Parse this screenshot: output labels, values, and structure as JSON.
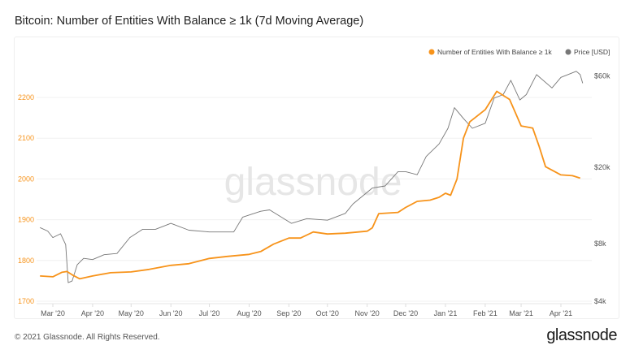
{
  "title": "Bitcoin: Number of Entities With Balance ≥ 1k (7d Moving Average)",
  "footer": {
    "copyright": "© 2021 Glassnode. All Rights Reserved.",
    "brand": "glassnode"
  },
  "watermark": "glassnode",
  "chart_data": {
    "type": "line",
    "title": "Bitcoin: Number of Entities With Balance ≥ 1k (7d Moving Average)",
    "legend_placement": "top-right",
    "grid": true,
    "x_ticks": [
      "Mar '20",
      "Apr '20",
      "May '20",
      "Jun '20",
      "Jul '20",
      "Aug '20",
      "Sep '20",
      "Oct '20",
      "Nov '20",
      "Dec '20",
      "Jan '21",
      "Feb '21",
      "Mar '21",
      "Apr '21"
    ],
    "x_tick_dates": [
      "2020-03-01",
      "2020-04-01",
      "2020-05-01",
      "2020-06-01",
      "2020-07-01",
      "2020-08-01",
      "2020-09-01",
      "2020-10-01",
      "2020-11-01",
      "2020-12-01",
      "2021-01-01",
      "2021-02-01",
      "2021-03-01",
      "2021-04-01"
    ],
    "y_left": {
      "ticks": [
        1700,
        1800,
        1900,
        2000,
        2100,
        2200
      ],
      "range": [
        1700,
        2250
      ],
      "color": "#f7931a"
    },
    "y_right": {
      "ticks": [
        "$4k",
        "$8k",
        "$20k",
        "$60k"
      ],
      "tick_values": [
        4000,
        8000,
        20000,
        60000
      ],
      "scale": "log",
      "range": [
        4000,
        70000
      ],
      "color": "#555555"
    },
    "series": [
      {
        "name": "Number of Entities With Balance ≥ 1k",
        "color": "#f7931a",
        "axis": "left",
        "x": [
          "2020-02-20",
          "2020-03-01",
          "2020-03-08",
          "2020-03-12",
          "2020-03-16",
          "2020-03-22",
          "2020-04-01",
          "2020-04-15",
          "2020-05-01",
          "2020-05-15",
          "2020-06-01",
          "2020-06-15",
          "2020-07-01",
          "2020-07-15",
          "2020-08-01",
          "2020-08-10",
          "2020-08-20",
          "2020-09-01",
          "2020-09-10",
          "2020-09-20",
          "2020-10-01",
          "2020-10-15",
          "2020-11-01",
          "2020-11-05",
          "2020-11-10",
          "2020-11-25",
          "2020-12-01",
          "2020-12-10",
          "2020-12-20",
          "2020-12-27",
          "2021-01-01",
          "2021-01-05",
          "2021-01-10",
          "2021-01-15",
          "2021-01-20",
          "2021-02-01",
          "2021-02-10",
          "2021-02-15",
          "2021-02-20",
          "2021-03-01",
          "2021-03-10",
          "2021-03-15",
          "2021-03-20",
          "2021-04-01",
          "2021-04-10",
          "2021-04-16"
        ],
        "values": [
          1762,
          1760,
          1771,
          1773,
          1765,
          1755,
          1762,
          1770,
          1772,
          1778,
          1788,
          1792,
          1805,
          1810,
          1815,
          1822,
          1840,
          1855,
          1855,
          1870,
          1865,
          1867,
          1872,
          1880,
          1915,
          1918,
          1930,
          1945,
          1948,
          1955,
          1965,
          1960,
          2000,
          2100,
          2140,
          2170,
          2215,
          2205,
          2195,
          2130,
          2125,
          2080,
          2030,
          2010,
          2008,
          2002
        ]
      },
      {
        "name": "Price [USD]",
        "color": "#777777",
        "axis": "right",
        "x": [
          "2020-02-20",
          "2020-02-26",
          "2020-03-01",
          "2020-03-07",
          "2020-03-11",
          "2020-03-13",
          "2020-03-16",
          "2020-03-20",
          "2020-03-25",
          "2020-04-01",
          "2020-04-10",
          "2020-04-20",
          "2020-04-30",
          "2020-05-10",
          "2020-05-20",
          "2020-06-01",
          "2020-06-15",
          "2020-07-01",
          "2020-07-20",
          "2020-07-27",
          "2020-08-10",
          "2020-08-17",
          "2020-09-03",
          "2020-09-15",
          "2020-10-01",
          "2020-10-15",
          "2020-10-21",
          "2020-11-05",
          "2020-11-15",
          "2020-11-25",
          "2020-12-01",
          "2020-12-10",
          "2020-12-17",
          "2020-12-27",
          "2021-01-03",
          "2021-01-08",
          "2021-01-15",
          "2021-01-22",
          "2021-02-01",
          "2021-02-08",
          "2021-02-15",
          "2021-02-21",
          "2021-02-28",
          "2021-03-05",
          "2021-03-13",
          "2021-03-25",
          "2021-04-01",
          "2021-04-13",
          "2021-04-16",
          "2021-04-18"
        ],
        "values": [
          9700,
          9300,
          8600,
          9000,
          7900,
          5000,
          5100,
          6200,
          6700,
          6600,
          7000,
          7100,
          8600,
          9500,
          9500,
          10200,
          9400,
          9200,
          9200,
          11000,
          11800,
          12000,
          10200,
          10800,
          10600,
          11500,
          12900,
          15600,
          16000,
          19000,
          19000,
          18300,
          22800,
          26500,
          32000,
          41000,
          36000,
          32000,
          34000,
          46000,
          48000,
          57000,
          45000,
          48000,
          61000,
          52000,
          59000,
          63500,
          61000,
          55000
        ]
      }
    ]
  }
}
